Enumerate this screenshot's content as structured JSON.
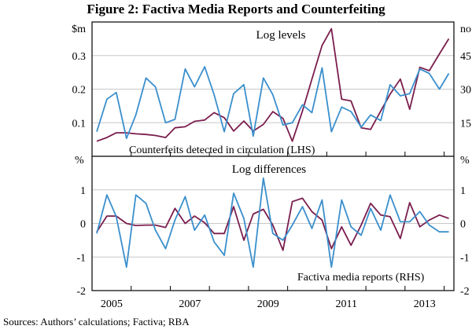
{
  "figure": {
    "title": "Figure 2: Factiva Media Reports and Counterfeiting",
    "sources": "Sources:    Authors’ calculations; Factiva; RBA"
  },
  "colors": {
    "counterfeits": "#7a1e4e",
    "media": "#3a8fcc",
    "grid": "#c8c8c8",
    "axis": "#000000"
  },
  "chart_data": [
    {
      "type": "line",
      "title": "Log levels",
      "left_unit": "$m",
      "right_unit": "no",
      "left_ylim": [
        0,
        0.4
      ],
      "right_ylim": [
        0,
        60
      ],
      "left_ticks": [
        0.1,
        0.2,
        0.3
      ],
      "left_tick_labels": [
        "0.1",
        "0.2",
        "0.3"
      ],
      "right_ticks": [
        15,
        30,
        45
      ],
      "right_tick_labels": [
        "15",
        "30",
        "45"
      ],
      "x_range": [
        2004.5,
        2013.75
      ],
      "x_tick_labels": [
        "2005",
        "2007",
        "2009",
        "2011",
        "2013"
      ],
      "x_tick_positions": [
        2005.0,
        2007.0,
        2009.0,
        2011.0,
        2013.0
      ],
      "series": [
        {
          "name": "Counterfeits detected in circulation (LHS)",
          "axis": "left",
          "x": [
            2004.62,
            2004.88,
            2005.12,
            2005.38,
            2005.62,
            2005.88,
            2006.12,
            2006.38,
            2006.62,
            2006.88,
            2007.12,
            2007.38,
            2007.62,
            2007.88,
            2008.12,
            2008.38,
            2008.62,
            2008.88,
            2009.12,
            2009.38,
            2009.62,
            2009.88,
            2010.12,
            2010.38,
            2010.62,
            2010.88,
            2011.12,
            2011.38,
            2011.62,
            2011.88,
            2012.12,
            2012.38,
            2012.62,
            2012.88,
            2013.12,
            2013.38,
            2013.62
          ],
          "values": [
            0.045,
            0.056,
            0.07,
            0.07,
            0.067,
            0.065,
            0.062,
            0.056,
            0.085,
            0.088,
            0.104,
            0.108,
            0.13,
            0.115,
            0.075,
            0.105,
            0.075,
            0.095,
            0.133,
            0.113,
            0.045,
            0.135,
            0.23,
            0.33,
            0.38,
            0.17,
            0.165,
            0.085,
            0.08,
            0.135,
            0.185,
            0.23,
            0.14,
            0.265,
            0.255,
            0.305,
            0.35
          ]
        },
        {
          "name": "Factiva media reports (RHS)",
          "axis": "right",
          "x": [
            2004.62,
            2004.88,
            2005.12,
            2005.38,
            2005.62,
            2005.88,
            2006.12,
            2006.38,
            2006.62,
            2006.88,
            2007.12,
            2007.38,
            2007.62,
            2007.88,
            2008.12,
            2008.38,
            2008.62,
            2008.88,
            2009.12,
            2009.38,
            2009.62,
            2009.88,
            2010.12,
            2010.38,
            2010.62,
            2010.88,
            2011.12,
            2011.38,
            2011.62,
            2011.88,
            2012.12,
            2012.38,
            2012.62,
            2012.88,
            2013.12,
            2013.38,
            2013.62
          ],
          "values": [
            11,
            25.5,
            28.5,
            8,
            18.5,
            35,
            31,
            15,
            16.5,
            39,
            31,
            40,
            27.5,
            11,
            28,
            32,
            9,
            35,
            27.5,
            14,
            15,
            23,
            19.5,
            39.5,
            11,
            22,
            20,
            13,
            18.5,
            16,
            32,
            27,
            28,
            39,
            37,
            30,
            37
          ]
        }
      ],
      "annotations": [
        {
          "text": "Counterfeits detected in circulation (LHS)",
          "series": 0
        }
      ]
    },
    {
      "type": "line",
      "title": "Log differences",
      "left_unit": "%",
      "right_unit": "%",
      "ylim": [
        -2,
        2
      ],
      "left_ticks": [
        -2,
        -1,
        0,
        1
      ],
      "left_tick_labels": [
        "-2",
        "-1",
        "0",
        "1"
      ],
      "right_ticks": [
        -2,
        -1,
        0,
        1
      ],
      "right_tick_labels": [
        "-2",
        "-1",
        "0",
        "1"
      ],
      "x_range": [
        2004.5,
        2013.75
      ],
      "x_tick_labels": [
        "2005",
        "2007",
        "2009",
        "2011",
        "2013"
      ],
      "x_tick_positions": [
        2005.0,
        2007.0,
        2009.0,
        2011.0,
        2013.0
      ],
      "series": [
        {
          "name": "Counterfeits detected in circulation",
          "x": [
            2004.62,
            2004.88,
            2005.12,
            2005.38,
            2005.62,
            2005.88,
            2006.12,
            2006.38,
            2006.62,
            2006.88,
            2007.12,
            2007.38,
            2007.62,
            2007.88,
            2008.12,
            2008.38,
            2008.62,
            2008.88,
            2009.12,
            2009.38,
            2009.62,
            2009.88,
            2010.12,
            2010.38,
            2010.62,
            2010.88,
            2011.12,
            2011.38,
            2011.62,
            2011.88,
            2012.12,
            2012.38,
            2012.62,
            2012.88,
            2013.12,
            2013.38,
            2013.62
          ],
          "values": [
            -0.25,
            0.22,
            0.22,
            0.0,
            -0.06,
            -0.05,
            -0.05,
            -0.12,
            0.45,
            0.0,
            0.22,
            0.02,
            -0.3,
            -0.3,
            0.5,
            -0.5,
            0.28,
            0.42,
            -0.05,
            -0.8,
            0.65,
            0.75,
            0.35,
            0.1,
            -0.75,
            -0.1,
            -0.65,
            -0.05,
            0.6,
            0.25,
            0.2,
            -0.45,
            0.62,
            -0.1,
            0.1,
            0.25,
            0.15
          ]
        },
        {
          "name": "Factiva media reports (RHS)",
          "x": [
            2004.62,
            2004.88,
            2005.12,
            2005.38,
            2005.62,
            2005.88,
            2006.12,
            2006.38,
            2006.62,
            2006.88,
            2007.12,
            2007.38,
            2007.62,
            2007.88,
            2008.12,
            2008.38,
            2008.62,
            2008.88,
            2009.12,
            2009.38,
            2009.62,
            2009.88,
            2010.12,
            2010.38,
            2010.62,
            2010.88,
            2011.12,
            2011.38,
            2011.62,
            2011.88,
            2012.12,
            2012.38,
            2012.62,
            2012.88,
            2013.12,
            2013.38,
            2013.62
          ],
          "values": [
            -0.3,
            0.85,
            0.2,
            -1.3,
            0.85,
            0.6,
            -0.2,
            -0.75,
            0.1,
            0.8,
            -0.2,
            0.25,
            -0.55,
            -0.95,
            0.9,
            0.15,
            -1.3,
            1.35,
            -0.3,
            -0.5,
            -0.05,
            0.5,
            -0.15,
            0.7,
            -1.3,
            0.7,
            -0.1,
            -0.35,
            0.45,
            -0.2,
            0.85,
            0.05,
            0.05,
            0.35,
            -0.05,
            -0.25,
            -0.25
          ]
        }
      ],
      "annotations": [
        {
          "text": "Factiva media reports (RHS)",
          "series": 1
        }
      ]
    }
  ]
}
